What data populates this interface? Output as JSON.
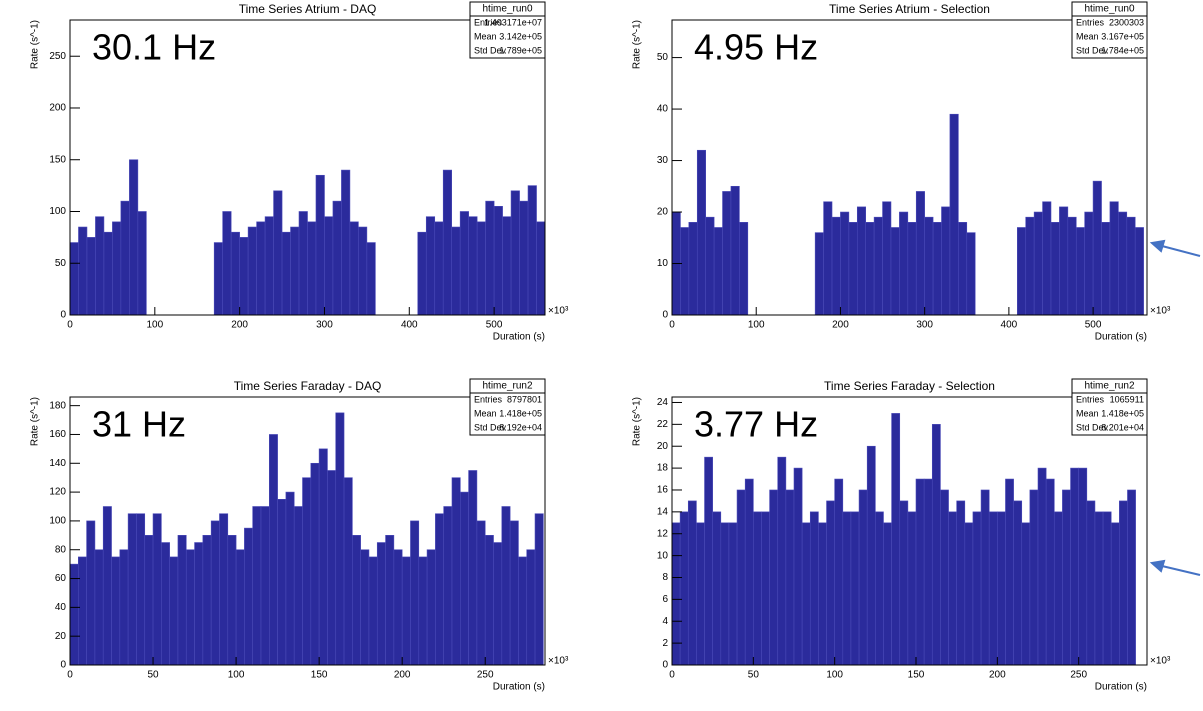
{
  "chart_data": [
    {
      "type": "histogram",
      "title": "Time Series Atrium - DAQ",
      "x_label": "Duration (s)",
      "y_label": "Rate (s^-1)",
      "x_multiplier": "×10³",
      "annotation": "30.1 Hz",
      "stats": {
        "name": "htime_run0",
        "rows": [
          [
            "Entries",
            "1.403171e+07"
          ],
          [
            "Mean",
            "3.142e+05"
          ],
          [
            "Std Dev",
            "1.789e+05"
          ]
        ]
      },
      "color": "#2b2b9c",
      "xlim": [
        0,
        560
      ],
      "ylim": [
        0,
        285
      ],
      "xticks": [
        0,
        100,
        200,
        300,
        400,
        500
      ],
      "yticks": [
        0,
        50,
        100,
        150,
        200,
        250
      ],
      "bins": [
        0,
        10,
        20,
        30,
        40,
        50,
        60,
        70,
        80,
        90,
        100,
        110,
        120,
        130,
        140,
        150,
        160,
        170,
        180,
        190,
        200,
        210,
        220,
        230,
        240,
        250,
        260,
        270,
        280,
        290,
        300,
        310,
        320,
        330,
        340,
        350,
        360,
        370,
        380,
        390,
        400,
        410,
        420,
        430,
        440,
        450,
        460,
        470,
        480,
        490,
        500,
        510,
        520,
        530,
        540,
        550,
        560
      ],
      "values": [
        70,
        85,
        75,
        95,
        80,
        90,
        110,
        150,
        100,
        0,
        0,
        0,
        0,
        0,
        0,
        0,
        0,
        70,
        100,
        80,
        75,
        85,
        90,
        95,
        120,
        80,
        85,
        100,
        90,
        135,
        95,
        110,
        140,
        90,
        85,
        70,
        0,
        0,
        0,
        0,
        0,
        80,
        95,
        90,
        140,
        85,
        100,
        95,
        90,
        110,
        105,
        95,
        120,
        110,
        125,
        90
      ]
    },
    {
      "type": "histogram",
      "title": "Time Series Atrium - Selection",
      "x_label": "Duration (s)",
      "y_label": "Rate (s^-1)",
      "x_multiplier": "×10³",
      "annotation": "4.95 Hz",
      "stats": {
        "name": "htime_run0",
        "rows": [
          [
            "Entries",
            "2300303"
          ],
          [
            "Mean",
            "3.167e+05"
          ],
          [
            "Std Dev",
            "1.784e+05"
          ]
        ]
      },
      "color": "#2b2b9c",
      "xlim": [
        0,
        564
      ],
      "ylim": [
        0,
        57.3
      ],
      "xticks": [
        0,
        100,
        200,
        300,
        400,
        500
      ],
      "yticks": [
        0,
        10,
        20,
        30,
        40,
        50
      ],
      "bins": [
        0,
        10,
        20,
        30,
        40,
        50,
        60,
        70,
        80,
        90,
        100,
        110,
        120,
        130,
        140,
        150,
        160,
        170,
        180,
        190,
        200,
        210,
        220,
        230,
        240,
        250,
        260,
        270,
        280,
        290,
        300,
        310,
        320,
        330,
        340,
        350,
        360,
        370,
        380,
        390,
        400,
        410,
        420,
        430,
        440,
        450,
        460,
        470,
        480,
        490,
        500,
        510,
        520,
        530,
        540,
        550,
        560
      ],
      "values": [
        20,
        17,
        18,
        32,
        19,
        17,
        24,
        25,
        18,
        0,
        0,
        0,
        0,
        0,
        0,
        0,
        0,
        16,
        22,
        19,
        20,
        18,
        21,
        18,
        19,
        22,
        17,
        20,
        18,
        24,
        19,
        18,
        21,
        39,
        18,
        16,
        0,
        0,
        0,
        0,
        0,
        17,
        19,
        20,
        22,
        18,
        21,
        19,
        17,
        20,
        26,
        18,
        22,
        20,
        19,
        17
      ]
    },
    {
      "type": "histogram",
      "title": "Time Series Faraday - DAQ",
      "x_label": "Duration (s)",
      "y_label": "Rate (s^-1)",
      "x_multiplier": "×10³",
      "annotation": "31 Hz",
      "stats": {
        "name": "htime_run2",
        "rows": [
          [
            "Entries",
            "8797801"
          ],
          [
            "Mean",
            "1.418e+05"
          ],
          [
            "Std Dev",
            "8.192e+04"
          ]
        ]
      },
      "color": "#2b2b9c",
      "xlim": [
        0,
        286
      ],
      "ylim": [
        0,
        186
      ],
      "xticks": [
        0,
        50,
        100,
        150,
        200,
        250
      ],
      "yticks": [
        0,
        20,
        40,
        60,
        80,
        100,
        120,
        140,
        160,
        180
      ],
      "bins": [
        0,
        5,
        10,
        15,
        20,
        25,
        30,
        35,
        40,
        45,
        50,
        55,
        60,
        65,
        70,
        75,
        80,
        85,
        90,
        95,
        100,
        105,
        110,
        115,
        120,
        125,
        130,
        135,
        140,
        145,
        150,
        155,
        160,
        165,
        170,
        175,
        180,
        185,
        190,
        195,
        200,
        205,
        210,
        215,
        220,
        225,
        230,
        235,
        240,
        245,
        250,
        255,
        260,
        265,
        270,
        275,
        280,
        285
      ],
      "values": [
        70,
        75,
        100,
        80,
        110,
        75,
        80,
        105,
        105,
        90,
        105,
        85,
        75,
        90,
        80,
        85,
        90,
        100,
        105,
        90,
        80,
        95,
        110,
        110,
        160,
        115,
        120,
        110,
        130,
        140,
        150,
        135,
        175,
        130,
        90,
        80,
        75,
        85,
        90,
        80,
        75,
        100,
        75,
        80,
        105,
        110,
        130,
        120,
        135,
        100,
        90,
        85,
        110,
        100,
        75,
        80,
        105
      ]
    },
    {
      "type": "histogram",
      "title": "Time Series Faraday - Selection",
      "x_label": "Duration (s)",
      "y_label": "Rate (s^-1)",
      "x_multiplier": "×10³",
      "annotation": "3.77 Hz",
      "stats": {
        "name": "htime_run2",
        "rows": [
          [
            "Entries",
            "1065911"
          ],
          [
            "Mean",
            "1.418e+05"
          ],
          [
            "Std Dev",
            "8.201e+04"
          ]
        ]
      },
      "color": "#2b2b9c",
      "xlim": [
        0,
        292
      ],
      "ylim": [
        0,
        24.5
      ],
      "xticks": [
        0,
        50,
        100,
        150,
        200,
        250
      ],
      "yticks": [
        0,
        2,
        4,
        6,
        8,
        10,
        12,
        14,
        16,
        18,
        20,
        22,
        24
      ],
      "bins": [
        0,
        5,
        10,
        15,
        20,
        25,
        30,
        35,
        40,
        45,
        50,
        55,
        60,
        65,
        70,
        75,
        80,
        85,
        90,
        95,
        100,
        105,
        110,
        115,
        120,
        125,
        130,
        135,
        140,
        145,
        150,
        155,
        160,
        165,
        170,
        175,
        180,
        185,
        190,
        195,
        200,
        205,
        210,
        215,
        220,
        225,
        230,
        235,
        240,
        245,
        250,
        255,
        260,
        265,
        270,
        275,
        280,
        285
      ],
      "values": [
        13,
        14,
        15,
        13,
        19,
        14,
        13,
        13,
        16,
        17,
        14,
        14,
        16,
        19,
        16,
        18,
        13,
        14,
        13,
        15,
        17,
        14,
        14,
        16,
        20,
        14,
        13,
        23,
        15,
        14,
        17,
        17,
        22,
        16,
        14,
        15,
        13,
        14,
        16,
        14,
        14,
        17,
        15,
        13,
        16,
        18,
        17,
        14,
        16,
        18,
        18,
        15,
        14,
        14,
        13,
        15,
        16
      ]
    }
  ]
}
